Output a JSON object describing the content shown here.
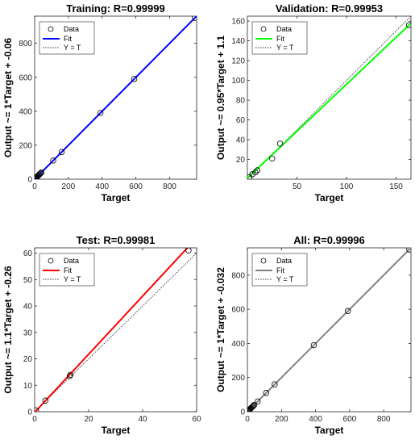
{
  "chart_data": [
    {
      "type": "scatter",
      "title": "Training: R=0.99999",
      "xlabel": "Target",
      "ylabel": "Output ~= 1*Target + -0.06",
      "xlim": [
        0,
        960
      ],
      "ylim": [
        0,
        960
      ],
      "xticks": [
        0,
        200,
        400,
        600,
        800
      ],
      "yticks": [
        0,
        200,
        400,
        600,
        800
      ],
      "fit": {
        "slope": 1,
        "intercept": -0.06
      },
      "fit_color": "#0000ff",
      "legend": {
        "position": "top-left",
        "entries": [
          "Data",
          "Fit",
          "Y = T"
        ]
      },
      "points": [
        [
          2,
          2
        ],
        [
          5,
          5
        ],
        [
          8,
          8
        ],
        [
          12,
          12
        ],
        [
          16,
          16
        ],
        [
          20,
          20
        ],
        [
          25,
          25
        ],
        [
          30,
          30
        ],
        [
          35,
          35
        ],
        [
          40,
          40
        ],
        [
          110,
          110
        ],
        [
          160,
          160
        ],
        [
          390,
          390
        ],
        [
          590,
          590
        ],
        [
          950,
          950
        ]
      ]
    },
    {
      "type": "scatter",
      "title": "Validation: R=0.99953",
      "xlabel": "Target",
      "ylabel": "Output ~= 0.95*Target + 1.1",
      "xlim": [
        0,
        165
      ],
      "ylim": [
        0,
        165
      ],
      "xticks": [
        50,
        100,
        150
      ],
      "yticks": [
        20,
        40,
        60,
        80,
        100,
        120,
        140,
        160
      ],
      "fit": {
        "slope": 0.95,
        "intercept": 1.1
      },
      "fit_color": "#00ff00",
      "legend": {
        "position": "top-left",
        "entries": [
          "Data",
          "Fit",
          "Y = T"
        ]
      },
      "points": [
        [
          2,
          2
        ],
        [
          5,
          5
        ],
        [
          8,
          7
        ],
        [
          10,
          9
        ],
        [
          25,
          21
        ],
        [
          33,
          36
        ],
        [
          163,
          156
        ]
      ]
    },
    {
      "type": "scatter",
      "title": "Test: R=0.99981",
      "xlabel": "Target",
      "ylabel": "Output ~= 1.1*Target + -0.26",
      "xlim": [
        0,
        60
      ],
      "ylim": [
        0,
        62
      ],
      "xticks": [
        0,
        20,
        40,
        60
      ],
      "yticks": [
        0,
        10,
        20,
        30,
        40,
        50,
        60
      ],
      "fit": {
        "slope": 1.1,
        "intercept": -0.26
      },
      "fit_color": "#ff0000",
      "legend": {
        "position": "top-left",
        "entries": [
          "Data",
          "Fit",
          "Y = T"
        ]
      },
      "points": [
        [
          0.5,
          0.5
        ],
        [
          4,
          4.2
        ],
        [
          13,
          13.5
        ],
        [
          13.3,
          14
        ],
        [
          57,
          61
        ]
      ]
    },
    {
      "type": "scatter",
      "title": "All: R=0.99996",
      "xlabel": "Target",
      "ylabel": "Output ~= 1*Target + -0.032",
      "xlim": [
        0,
        960
      ],
      "ylim": [
        0,
        960
      ],
      "xticks": [
        0,
        200,
        400,
        600,
        800
      ],
      "yticks": [
        0,
        200,
        400,
        600,
        800
      ],
      "fit": {
        "slope": 1,
        "intercept": -0.032
      },
      "fit_color": "#808080",
      "legend": {
        "position": "top-left",
        "entries": [
          "Data",
          "Fit",
          "Y = T"
        ]
      },
      "points": [
        [
          2,
          2
        ],
        [
          5,
          5
        ],
        [
          8,
          8
        ],
        [
          12,
          12
        ],
        [
          16,
          16
        ],
        [
          20,
          20
        ],
        [
          25,
          25
        ],
        [
          30,
          30
        ],
        [
          35,
          35
        ],
        [
          40,
          40
        ],
        [
          60,
          60
        ],
        [
          110,
          110
        ],
        [
          160,
          160
        ],
        [
          390,
          390
        ],
        [
          590,
          590
        ],
        [
          950,
          950
        ]
      ]
    }
  ]
}
